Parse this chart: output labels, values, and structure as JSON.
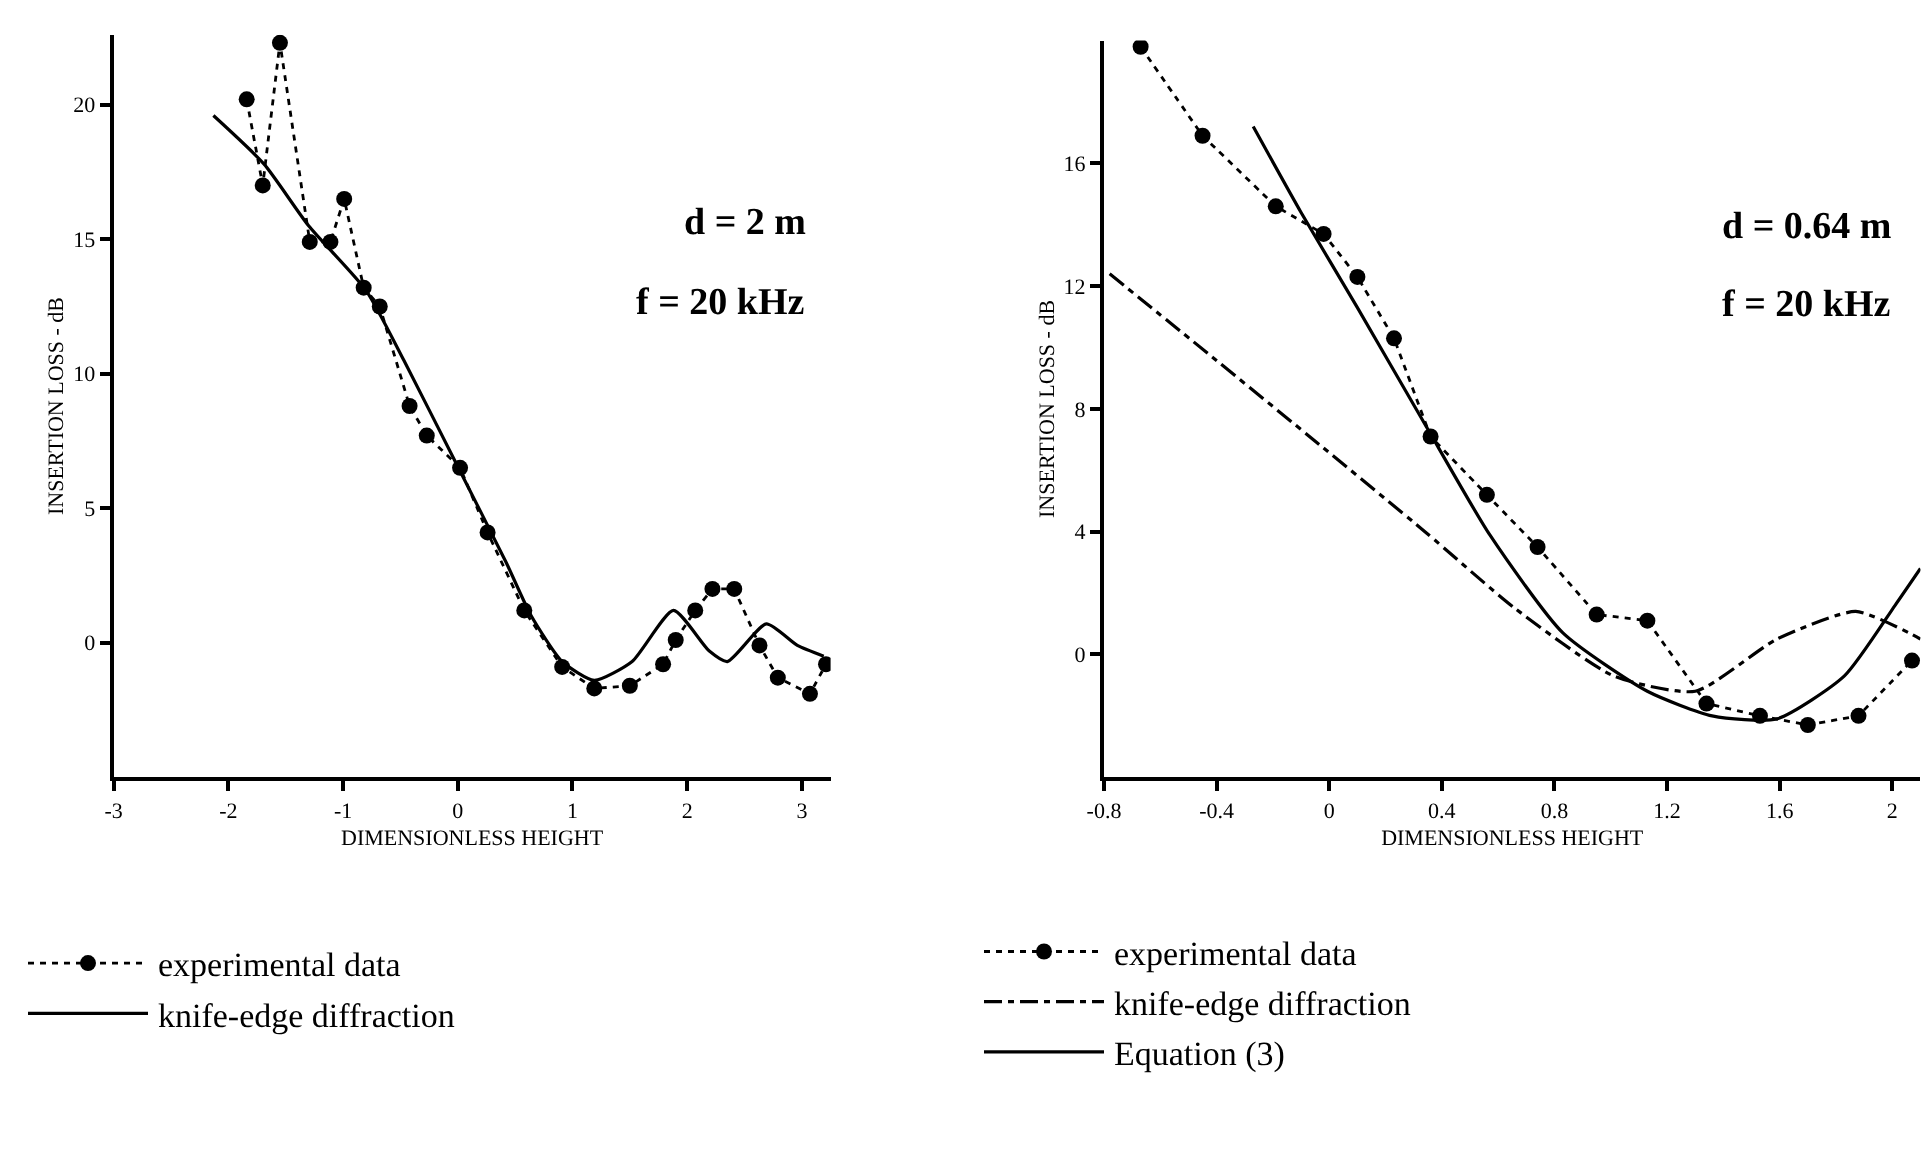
{
  "chart_data": [
    {
      "type": "line",
      "xlabel": "DIMENSIONLESS HEIGHT",
      "ylabel": "INSERTION LOSS - dB",
      "xlim": [
        -3,
        3.25
      ],
      "ylim": [
        -5,
        22.6
      ],
      "xticks": [
        -3,
        -2,
        -1,
        0,
        1,
        2,
        3
      ],
      "yticks": [
        0,
        5,
        10,
        15,
        20
      ],
      "legend": "bottom",
      "annotations": [
        "d = 2 m",
        "f = 20 kHz"
      ],
      "series": [
        {
          "name": "experimental data",
          "color": "#000000",
          "marker": "circle",
          "line_style": "dotted",
          "x": [
            -1.84,
            -1.7,
            -1.55,
            -1.29,
            -1.11,
            -0.99,
            -0.82,
            -0.68,
            -0.42,
            -0.27,
            0.02,
            0.26,
            0.58,
            0.91,
            1.19,
            1.5,
            1.79,
            1.9,
            2.07,
            2.22,
            2.41,
            2.63,
            2.79,
            3.07,
            3.21
          ],
          "values": [
            20.2,
            17.0,
            22.3,
            14.9,
            14.9,
            16.5,
            13.2,
            12.5,
            8.8,
            7.7,
            6.5,
            4.1,
            1.2,
            -0.9,
            -1.7,
            -1.6,
            -0.8,
            0.1,
            1.2,
            2.0,
            2.0,
            -0.1,
            -1.3,
            -1.9,
            -0.8
          ]
        },
        {
          "name": "knife-edge diffraction",
          "color": "#000000",
          "marker": "none",
          "line_style": "solid",
          "x": [
            -2.13,
            -1.69,
            -1.3,
            -0.8,
            -0.47,
            -0.03,
            0.42,
            0.64,
            0.91,
            1.19,
            1.52,
            1.88,
            2.19,
            2.35,
            2.69,
            2.96,
            3.19
          ],
          "values": [
            19.6,
            17.8,
            15.5,
            13.1,
            10.5,
            6.8,
            3.0,
            1.0,
            -0.7,
            -1.4,
            -0.7,
            1.2,
            -0.3,
            -0.7,
            0.7,
            -0.1,
            -0.5
          ]
        }
      ]
    },
    {
      "type": "line",
      "xlabel": "DIMENSIONLESS HEIGHT",
      "ylabel": "INSERTION LOSS - dB",
      "xlim": [
        -0.8,
        2.1
      ],
      "ylim": [
        -4,
        20
      ],
      "xticks": [
        -0.8,
        -0.4,
        0,
        0.4,
        0.8,
        1.2,
        1.6,
        2
      ],
      "yticks": [
        0,
        4,
        8,
        12,
        16
      ],
      "legend": "bottom",
      "annotations": [
        "d = 0.64 m",
        "f = 20 kHz"
      ],
      "series": [
        {
          "name": "experimental data",
          "color": "#000000",
          "marker": "circle",
          "line_style": "dotted",
          "x": [
            -0.67,
            -0.45,
            -0.19,
            -0.02,
            0.1,
            0.23,
            0.36,
            0.56,
            0.74,
            0.95,
            1.13,
            1.34,
            1.53,
            1.7,
            1.88,
            2.07
          ],
          "values": [
            19.8,
            16.9,
            14.6,
            13.7,
            12.3,
            10.3,
            7.1,
            5.2,
            3.5,
            1.3,
            1.1,
            -1.6,
            -2.0,
            -2.3,
            -2.0,
            -0.2
          ]
        },
        {
          "name": "knife-edge diffraction",
          "color": "#000000",
          "marker": "none",
          "line_style": "dashdot",
          "x": [
            -0.78,
            -0.43,
            -0.03,
            0.34,
            0.66,
            1.01,
            1.3,
            1.59,
            1.87,
            2.06,
            2.1
          ],
          "values": [
            12.4,
            9.8,
            6.8,
            4.0,
            1.5,
            -0.7,
            -1.2,
            0.5,
            1.4,
            0.7,
            0.5
          ]
        },
        {
          "name": "Equation (3)",
          "color": "#000000",
          "marker": "none",
          "line_style": "solid",
          "x": [
            -0.27,
            -0.1,
            0.1,
            0.34,
            0.57,
            0.83,
            1.13,
            1.36,
            1.59,
            1.83,
            2.01,
            2.1
          ],
          "values": [
            17.2,
            14.4,
            11.3,
            7.5,
            3.9,
            0.7,
            -1.2,
            -2.0,
            -2.1,
            -0.7,
            1.6,
            2.8
          ]
        }
      ]
    }
  ]
}
